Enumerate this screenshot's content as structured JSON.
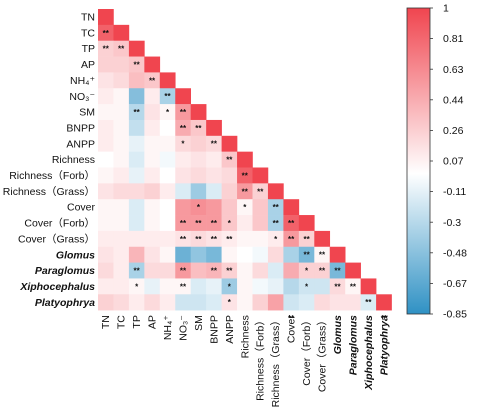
{
  "chart_data": {
    "type": "heatmap",
    "variables": [
      {
        "name": "TN",
        "italic": false
      },
      {
        "name": "TC",
        "italic": false
      },
      {
        "name": "TP",
        "italic": false
      },
      {
        "name": "AP",
        "italic": false
      },
      {
        "name": "NH₄⁺",
        "italic": false
      },
      {
        "name": "NO₃⁻",
        "italic": false
      },
      {
        "name": "SM",
        "italic": false
      },
      {
        "name": "BNPP",
        "italic": false
      },
      {
        "name": "ANPP",
        "italic": false
      },
      {
        "name": "Richness",
        "italic": false
      },
      {
        "name": "Richness（Forb）",
        "italic": false
      },
      {
        "name": "Richness（Grass）",
        "italic": false
      },
      {
        "name": "Cover",
        "italic": false
      },
      {
        "name": "Cover（Forb）",
        "italic": false
      },
      {
        "name": "Cover（Grass）",
        "italic": false
      },
      {
        "name": "Glomus",
        "italic": true
      },
      {
        "name": "Paraglomus",
        "italic": true
      },
      {
        "name": "Xiphocephalus",
        "italic": true
      },
      {
        "name": "Platyophrya",
        "italic": true
      }
    ],
    "matrix": [
      [
        1
      ],
      [
        0.85,
        1
      ],
      [
        0.25,
        0.3,
        1
      ],
      [
        0.25,
        0.25,
        0.3,
        1
      ],
      [
        0.15,
        0.2,
        0.35,
        0.3,
        1
      ],
      [
        0.1,
        0.05,
        -0.5,
        0.1,
        -0.35,
        1
      ],
      [
        0.05,
        0.05,
        -0.3,
        0.15,
        0.05,
        0.55,
        1
      ],
      [
        0.1,
        0.05,
        -0.25,
        0.1,
        0.0,
        0.45,
        0.3,
        1
      ],
      [
        0.1,
        0.05,
        -0.1,
        0.05,
        0.05,
        0.2,
        0.25,
        0.2,
        1
      ],
      [
        0.0,
        0.05,
        -0.15,
        0.05,
        -0.05,
        0.1,
        0.15,
        0.1,
        0.3,
        1
      ],
      [
        0.05,
        0.1,
        -0.1,
        0.1,
        0.0,
        0.15,
        0.2,
        0.15,
        0.2,
        0.85,
        1
      ],
      [
        0.15,
        0.2,
        0.2,
        0.25,
        0.1,
        -0.15,
        -0.4,
        -0.15,
        0.25,
        0.55,
        0.25,
        1
      ],
      [
        0.05,
        0.05,
        -0.15,
        0.05,
        0.0,
        0.55,
        0.6,
        0.55,
        0.3,
        0.05,
        0.3,
        -0.35,
        1
      ],
      [
        0.05,
        0.05,
        -0.15,
        0.05,
        0.0,
        0.55,
        0.55,
        0.55,
        0.3,
        0.1,
        0.3,
        -0.35,
        0.85,
        1
      ],
      [
        0.1,
        0.1,
        0.1,
        0.1,
        0.1,
        0.15,
        0.2,
        0.15,
        0.1,
        0.05,
        0.05,
        0.1,
        0.55,
        0.25,
        1
      ],
      [
        0.15,
        0.1,
        0.4,
        0.15,
        0.05,
        -0.6,
        -0.45,
        -0.55,
        0.05,
        0.0,
        -0.05,
        0.2,
        -0.35,
        -0.55,
        0.05,
        1
      ],
      [
        0.2,
        0.1,
        -0.35,
        0.2,
        0.2,
        0.55,
        0.35,
        0.4,
        0.25,
        0.05,
        0.2,
        -0.15,
        0.45,
        0.25,
        0.25,
        -0.55,
        1
      ],
      [
        0.1,
        0.1,
        0.05,
        -0.1,
        0.05,
        0.05,
        -0.15,
        -0.1,
        -0.4,
        0.05,
        -0.05,
        -0.1,
        -0.3,
        -0.2,
        -0.2,
        0.2,
        0.05,
        1
      ],
      [
        0.25,
        0.2,
        0.1,
        0.2,
        0.1,
        -0.2,
        -0.2,
        -0.15,
        0.15,
        0.05,
        0.25,
        0.5,
        -0.2,
        -0.15,
        0.2,
        0.15,
        0.15,
        -0.15,
        1
      ]
    ],
    "significance": [
      [
        1,
        0,
        "**"
      ],
      [
        2,
        0,
        "**"
      ],
      [
        2,
        1,
        "**"
      ],
      [
        3,
        2,
        "**"
      ],
      [
        4,
        3,
        "**"
      ],
      [
        5,
        4,
        "**"
      ],
      [
        6,
        2,
        "**"
      ],
      [
        6,
        4,
        "*"
      ],
      [
        6,
        5,
        "**"
      ],
      [
        7,
        5,
        "**"
      ],
      [
        7,
        6,
        "**"
      ],
      [
        8,
        5,
        "*"
      ],
      [
        8,
        7,
        "**"
      ],
      [
        9,
        8,
        "**"
      ],
      [
        10,
        9,
        "**"
      ],
      [
        11,
        9,
        "**"
      ],
      [
        11,
        10,
        "**"
      ],
      [
        12,
        6,
        "*"
      ],
      [
        12,
        9,
        "*"
      ],
      [
        12,
        11,
        "**"
      ],
      [
        13,
        5,
        "**"
      ],
      [
        13,
        6,
        "**"
      ],
      [
        13,
        7,
        "**"
      ],
      [
        13,
        8,
        "*"
      ],
      [
        13,
        11,
        "**"
      ],
      [
        13,
        12,
        "**"
      ],
      [
        14,
        5,
        "**"
      ],
      [
        14,
        6,
        "**"
      ],
      [
        14,
        7,
        "**"
      ],
      [
        14,
        8,
        "**"
      ],
      [
        14,
        11,
        "*"
      ],
      [
        14,
        12,
        "**"
      ],
      [
        14,
        13,
        "**"
      ],
      [
        15,
        13,
        "**"
      ],
      [
        15,
        14,
        "**"
      ],
      [
        16,
        2,
        "**"
      ],
      [
        16,
        5,
        "**"
      ],
      [
        16,
        7,
        "**"
      ],
      [
        16,
        8,
        "**"
      ],
      [
        16,
        13,
        "*"
      ],
      [
        16,
        14,
        "**"
      ],
      [
        16,
        15,
        "**"
      ],
      [
        17,
        2,
        "*"
      ],
      [
        17,
        5,
        "**"
      ],
      [
        17,
        8,
        "*"
      ],
      [
        17,
        13,
        "*"
      ],
      [
        17,
        15,
        "**"
      ],
      [
        17,
        16,
        "**"
      ],
      [
        18,
        8,
        "*"
      ],
      [
        18,
        17,
        "**"
      ],
      [
        19,
        12,
        "**"
      ],
      [
        19,
        18,
        "**"
      ]
    ],
    "colorbar": {
      "min": -0.85,
      "max": 1,
      "ticks": [
        "1",
        "0.81",
        "0.63",
        "0.44",
        "0.26",
        "0.07",
        "-0.11",
        "-0.3",
        "-0.48",
        "-0.67",
        "-0.85"
      ],
      "colors": {
        "high": "#f0454f",
        "mid": "#ffffff",
        "low": "#2f91c4"
      }
    }
  }
}
